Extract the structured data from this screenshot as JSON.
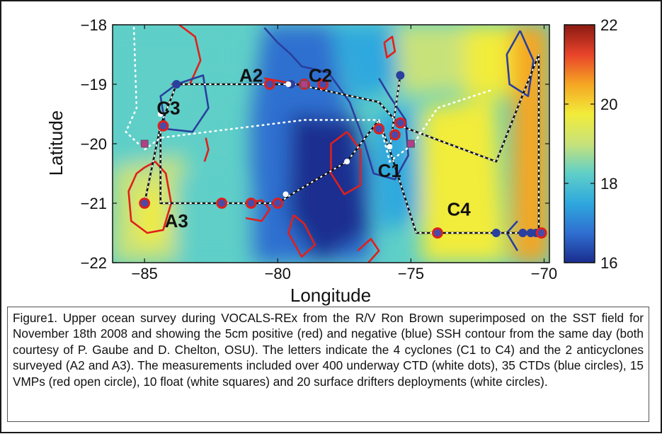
{
  "chart_data": {
    "type": "heatmap",
    "xlabel": "Longitude",
    "ylabel": "Latitude",
    "xlim": [
      -86.2,
      -69.8
    ],
    "ylim": [
      -22,
      -18
    ],
    "x_ticks": [
      {
        "value": -85,
        "label": "−85"
      },
      {
        "value": -80,
        "label": "−80"
      },
      {
        "value": -75,
        "label": "−75"
      },
      {
        "value": -70,
        "label": "−70"
      }
    ],
    "y_ticks": [
      {
        "value": -18,
        "label": "−18"
      },
      {
        "value": -19,
        "label": "−19"
      },
      {
        "value": -20,
        "label": "−20"
      },
      {
        "value": -21,
        "label": "−21"
      },
      {
        "value": -22,
        "label": "−22"
      }
    ],
    "colorbar": {
      "range": [
        16,
        22
      ],
      "ticks": [
        {
          "value": 16,
          "label": "16"
        },
        {
          "value": 18,
          "label": "18"
        },
        {
          "value": 20,
          "label": "20"
        },
        {
          "value": 22,
          "label": "22"
        }
      ],
      "stops": [
        "#1a2d8f",
        "#2f6fd0",
        "#2fa8de",
        "#5fcfc8",
        "#c8e27a",
        "#f2ec3a",
        "#f5a623",
        "#e8432a",
        "#8a1a12"
      ]
    },
    "eddies": [
      {
        "label": "A2",
        "lon": -81.0,
        "lat": -18.85
      },
      {
        "label": "C2",
        "lon": -78.4,
        "lat": -18.85
      },
      {
        "label": "C3",
        "lon": -84.1,
        "lat": -19.4
      },
      {
        "label": "C1",
        "lon": -75.8,
        "lat": -20.45
      },
      {
        "label": "C4",
        "lon": -73.2,
        "lat": -21.1
      },
      {
        "label": "A3",
        "lon": -83.8,
        "lat": -21.3
      }
    ],
    "ship_track": [
      [
        -85,
        -21
      ],
      [
        -84.4,
        -19.7
      ],
      [
        -84.4,
        -21
      ],
      [
        -80,
        -21
      ],
      [
        -79.3,
        -20.8
      ],
      [
        -77.4,
        -20.3
      ],
      [
        -76.2,
        -19.6
      ],
      [
        -75.8,
        -20.1
      ],
      [
        -75.4,
        -18.85
      ],
      [
        -75.8,
        -20.1
      ],
      [
        -74.8,
        -21.5
      ],
      [
        -70.2,
        -21.5
      ],
      [
        -70.2,
        -18.5
      ],
      [
        -71.8,
        -20.3
      ],
      [
        -75.4,
        -19.7
      ],
      [
        -76.2,
        -19.3
      ],
      [
        -79.3,
        -19.0
      ],
      [
        -83.8,
        -19.0
      ],
      [
        -84.4,
        -19.7
      ]
    ],
    "dotted_track": [
      [
        -85.4,
        -18.05
      ],
      [
        -85.3,
        -19.4
      ],
      [
        -85.7,
        -19.8
      ],
      [
        -85.0,
        -20.1
      ],
      [
        -84.4,
        -19.9
      ],
      [
        -79.0,
        -19.6
      ],
      [
        -76.2,
        -19.6
      ],
      [
        -75.8,
        -20.3
      ],
      [
        -74.9,
        -20.0
      ],
      [
        -74.0,
        -19.4
      ],
      [
        -72.0,
        -19.1
      ]
    ],
    "positive_ssh_contours": [
      [
        [
          -83.7,
          -18.0
        ],
        [
          -83.1,
          -18.2
        ],
        [
          -82.9,
          -18.6
        ],
        [
          -83.3,
          -19.0
        ],
        [
          -84.0,
          -19.0
        ]
      ],
      [
        [
          -80.5,
          -18.9
        ],
        [
          -79.9,
          -18.95
        ],
        [
          -79.3,
          -19.0
        ]
      ],
      [
        [
          -76.0,
          -18.3
        ],
        [
          -75.7,
          -18.2
        ],
        [
          -75.6,
          -18.45
        ],
        [
          -75.9,
          -18.55
        ],
        [
          -76.0,
          -18.3
        ]
      ],
      [
        [
          -82.7,
          -19.9
        ],
        [
          -82.6,
          -20.1
        ],
        [
          -82.75,
          -20.3
        ]
      ],
      [
        [
          -85.0,
          -20.4
        ],
        [
          -84.6,
          -20.3
        ],
        [
          -84.2,
          -20.5
        ],
        [
          -84.0,
          -21.0
        ],
        [
          -84.3,
          -21.45
        ],
        [
          -84.9,
          -21.5
        ],
        [
          -85.5,
          -21.3
        ],
        [
          -85.6,
          -20.8
        ],
        [
          -85.3,
          -20.5
        ],
        [
          -85.0,
          -20.4
        ]
      ],
      [
        [
          -77.4,
          -19.8
        ],
        [
          -76.9,
          -20.1
        ],
        [
          -76.9,
          -20.7
        ],
        [
          -77.5,
          -20.85
        ],
        [
          -78.0,
          -20.5
        ],
        [
          -78.0,
          -20.0
        ],
        [
          -77.4,
          -19.8
        ]
      ],
      [
        [
          -81.2,
          -21.0
        ],
        [
          -80.6,
          -20.95
        ],
        [
          -80.3,
          -21.1
        ],
        [
          -80.6,
          -21.3
        ],
        [
          -81.2,
          -21.25
        ]
      ],
      [
        [
          -79.4,
          -21.2
        ],
        [
          -79.6,
          -21.5
        ],
        [
          -79.1,
          -21.9
        ],
        [
          -78.6,
          -21.7
        ],
        [
          -79.0,
          -21.35
        ],
        [
          -79.4,
          -21.2
        ]
      ],
      [
        [
          -77.0,
          -21.8
        ],
        [
          -76.5,
          -21.6
        ],
        [
          -76.2,
          -21.8
        ],
        [
          -76.6,
          -22.0
        ]
      ]
    ],
    "negative_ssh_contours": [
      [
        [
          -83.8,
          -19.0
        ],
        [
          -82.8,
          -18.85
        ],
        [
          -82.6,
          -19.4
        ],
        [
          -83.2,
          -19.8
        ],
        [
          -84.2,
          -19.75
        ],
        [
          -84.4,
          -19.2
        ],
        [
          -83.8,
          -19.0
        ]
      ],
      [
        [
          -80.5,
          -18.05
        ],
        [
          -80.0,
          -18.3
        ],
        [
          -79.5,
          -18.5
        ],
        [
          -79.1,
          -18.7
        ],
        [
          -78.1,
          -18.8
        ],
        [
          -77.3,
          -19.3
        ],
        [
          -76.8,
          -19.9
        ],
        [
          -76.4,
          -20.5
        ],
        [
          -75.6,
          -20.6
        ],
        [
          -75.1,
          -20.2
        ],
        [
          -75.2,
          -19.6
        ],
        [
          -75.8,
          -19.2
        ],
        [
          -76.2,
          -18.9
        ]
      ],
      [
        [
          -70.9,
          -18.1
        ],
        [
          -71.4,
          -18.5
        ],
        [
          -71.3,
          -19.0
        ],
        [
          -70.6,
          -19.2
        ],
        [
          -70.4,
          -18.6
        ],
        [
          -70.9,
          -18.1
        ]
      ],
      [
        [
          -71.0,
          -21.8
        ],
        [
          -71.4,
          -21.5
        ],
        [
          -71.0,
          -21.3
        ]
      ]
    ],
    "float_squares": [
      [
        -85.0,
        -20.0
      ],
      [
        -75.0,
        -20.0
      ],
      [
        -79.0,
        -19.0
      ]
    ],
    "drifter_circles": [
      [
        -84.3,
        -19.7
      ],
      [
        -85.0,
        -21.0
      ],
      [
        -82.1,
        -21.0
      ],
      [
        -81.0,
        -21.0
      ],
      [
        -80.0,
        -21.0
      ],
      [
        -80.3,
        -19.0
      ],
      [
        -79.0,
        -19.0
      ],
      [
        -78.3,
        -19.0
      ],
      [
        -76.2,
        -19.75
      ],
      [
        -75.6,
        -19.85
      ],
      [
        -75.4,
        -19.65
      ],
      [
        -74.0,
        -21.5
      ],
      [
        -70.1,
        -21.5
      ]
    ],
    "ctd_dots": [
      [
        -83.8,
        -19.0
      ],
      [
        -82.1,
        -21.0
      ],
      [
        -81.0,
        -21.0
      ],
      [
        -75.4,
        -18.85
      ],
      [
        -71.8,
        -21.5
      ],
      [
        -70.8,
        -21.5
      ],
      [
        -70.3,
        -21.5
      ],
      [
        -70.5,
        -21.5
      ],
      [
        -79.5,
        -19.0
      ]
    ],
    "white_dots": [
      [
        -84.4,
        -19.5
      ],
      [
        -79.7,
        -20.85
      ],
      [
        -75.8,
        -20.05
      ],
      [
        -77.4,
        -20.3
      ],
      [
        -79.6,
        -19.0
      ]
    ]
  },
  "caption": "Figure1. Upper ocean survey during VOCALS-REx from the R/V Ron Brown superimposed on the SST field for November 18th 2008 and showing the 5cm positive (red) and negative (blue) SSH contour from the same day (both courtesy of P. Gaube and D. Chelton, OSU). The letters indicate the 4 cyclones (C1 to C4) and the 2 anticyclones surveyed (A2 and A3). The measurements included over 400 underway CTD (white dots), 35 CTDs (blue circles), 15 VMPs (red open circle), 10 float (white squares) and 20 surface drifters deployments (white circles)."
}
